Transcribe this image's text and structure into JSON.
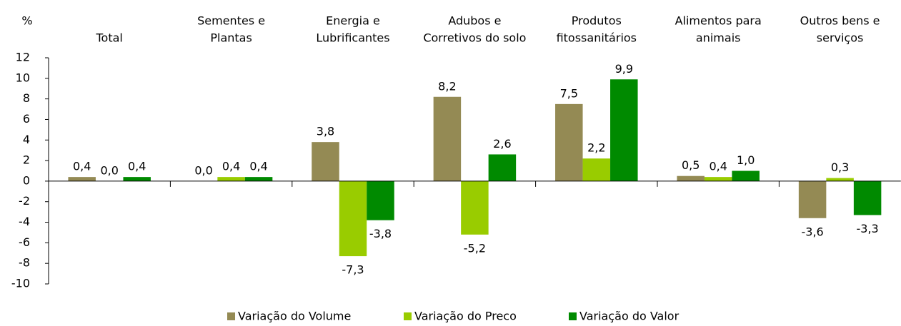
{
  "chart_data": {
    "type": "bar",
    "y_label": "%",
    "categories": [
      [
        "Total"
      ],
      [
        "Sementes e",
        "Plantas"
      ],
      [
        "Energia e",
        "Lubrificantes"
      ],
      [
        "Adubos e",
        "Corretivos do solo"
      ],
      [
        "Produtos",
        "fitossanitários"
      ],
      [
        "Alimentos para",
        "animais"
      ],
      [
        "Outros bens e",
        "serviços"
      ]
    ],
    "series": [
      {
        "name": "Variação do Volume",
        "color": "#948a54",
        "values": [
          0.4,
          0.0,
          3.8,
          8.2,
          7.5,
          0.5,
          -3.6
        ],
        "value_labels": [
          "0,4",
          "0,0",
          "3,8",
          "8,2",
          "7,5",
          "0,5",
          "-3,6"
        ]
      },
      {
        "name": "Variação do Preco",
        "color": "#99cc00",
        "values": [
          0.0,
          0.4,
          -7.3,
          -5.2,
          2.2,
          0.4,
          0.3
        ],
        "value_labels": [
          "0,0",
          "0,4",
          "-7,3",
          "-5,2",
          "2,2",
          "0,4",
          "0,3"
        ]
      },
      {
        "name": "Variação do Valor",
        "color": "#008a00",
        "values": [
          0.4,
          0.4,
          -3.8,
          2.6,
          9.9,
          1.0,
          -3.3
        ],
        "value_labels": [
          "0,4",
          "0,4",
          "-3,8",
          "2,6",
          "9,9",
          "1,0",
          "-3,3"
        ]
      }
    ],
    "ylim": [
      -10,
      12
    ],
    "yticks": [
      -10,
      -8,
      -6,
      -4,
      -2,
      0,
      2,
      4,
      6,
      8,
      10,
      12
    ],
    "legend": "bottom"
  }
}
